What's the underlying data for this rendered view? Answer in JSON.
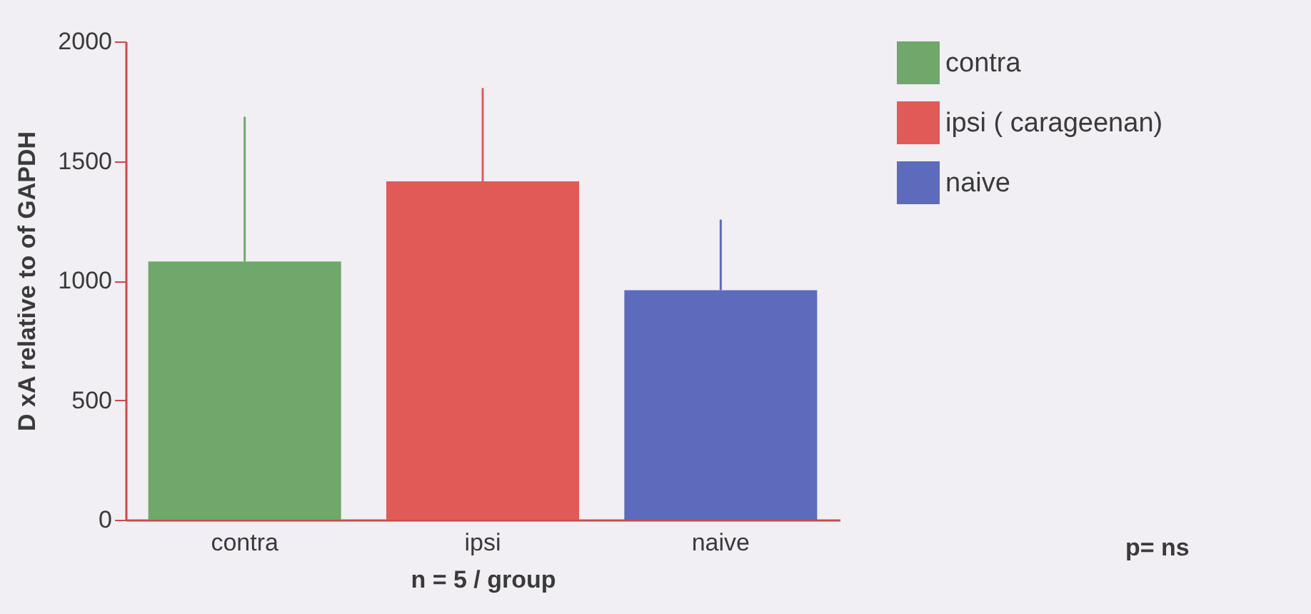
{
  "chart_data": {
    "type": "bar",
    "ylabel": "D xA relative to of GAPDH",
    "xlabel": "n = 5 / group",
    "categories": [
      "contra",
      "ipsi",
      "naive"
    ],
    "series": [
      {
        "name": "contra",
        "color": "#6fa86a",
        "values": [
          1080,
          null,
          null
        ],
        "errors": [
          [
            1080,
            1685
          ],
          null,
          null
        ]
      },
      {
        "name": "ipsi ( carageenan)",
        "color": "#e05a58",
        "values": [
          null,
          1415,
          null
        ],
        "errors": [
          null,
          [
            1415,
            1805
          ],
          null
        ]
      },
      {
        "name": "naive",
        "color": "#5c6bbb",
        "values": [
          null,
          null,
          960
        ],
        "errors": [
          null,
          null,
          [
            960,
            1255
          ]
        ]
      }
    ],
    "ylim": [
      0,
      2000
    ],
    "yticks": [
      0,
      500,
      1000,
      1500,
      2000
    ],
    "legend": "top right",
    "annotations": [
      "p= ns"
    ]
  }
}
